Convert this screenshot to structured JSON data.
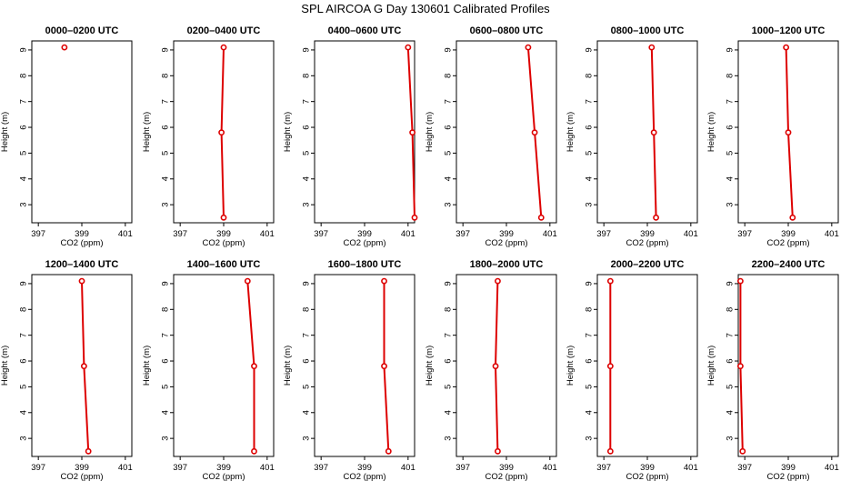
{
  "title": "SPL AIRCOA G  Day 130601  Calibrated Profiles",
  "colors": {
    "series": "#dd0000",
    "axis": "#000000"
  },
  "chart_data": [
    {
      "type": "line",
      "title": "0000–0200 UTC",
      "xlabel": "CO2 (ppm)",
      "ylabel": "Height (m)",
      "xlim": [
        396.7,
        401.3
      ],
      "ylim": [
        2.3,
        9.35
      ],
      "xticks": [
        397,
        399,
        401
      ],
      "yticks": [
        3,
        4,
        5,
        6,
        7,
        8,
        9
      ],
      "grid": false,
      "points": [
        {
          "x": 398.2,
          "y": 9.1
        }
      ]
    },
    {
      "type": "line",
      "title": "0200–0400 UTC",
      "xlabel": "CO2 (ppm)",
      "ylabel": "Height (m)",
      "xlim": [
        396.7,
        401.3
      ],
      "ylim": [
        2.3,
        9.35
      ],
      "xticks": [
        397,
        399,
        401
      ],
      "yticks": [
        3,
        4,
        5,
        6,
        7,
        8,
        9
      ],
      "grid": false,
      "points": [
        {
          "x": 399.0,
          "y": 9.1
        },
        {
          "x": 398.9,
          "y": 5.8
        },
        {
          "x": 399.0,
          "y": 2.5
        }
      ]
    },
    {
      "type": "line",
      "title": "0400–0600 UTC",
      "xlabel": "CO2 (ppm)",
      "ylabel": "Height (m)",
      "xlim": [
        396.7,
        401.3
      ],
      "ylim": [
        2.3,
        9.35
      ],
      "xticks": [
        397,
        399,
        401
      ],
      "yticks": [
        3,
        4,
        5,
        6,
        7,
        8,
        9
      ],
      "grid": false,
      "points": [
        {
          "x": 401.0,
          "y": 9.1
        },
        {
          "x": 401.2,
          "y": 5.8
        },
        {
          "x": 401.3,
          "y": 2.5
        }
      ]
    },
    {
      "type": "line",
      "title": "0600–0800 UTC",
      "xlabel": "CO2 (ppm)",
      "ylabel": "Height (m)",
      "xlim": [
        396.7,
        401.3
      ],
      "ylim": [
        2.3,
        9.35
      ],
      "xticks": [
        397,
        399,
        401
      ],
      "yticks": [
        3,
        4,
        5,
        6,
        7,
        8,
        9
      ],
      "grid": false,
      "points": [
        {
          "x": 400.0,
          "y": 9.1
        },
        {
          "x": 400.3,
          "y": 5.8
        },
        {
          "x": 400.6,
          "y": 2.5
        }
      ]
    },
    {
      "type": "line",
      "title": "0800–1000 UTC",
      "xlabel": "CO2 (ppm)",
      "ylabel": "Height (m)",
      "xlim": [
        396.7,
        401.3
      ],
      "ylim": [
        2.3,
        9.35
      ],
      "xticks": [
        397,
        399,
        401
      ],
      "yticks": [
        3,
        4,
        5,
        6,
        7,
        8,
        9
      ],
      "grid": false,
      "points": [
        {
          "x": 399.2,
          "y": 9.1
        },
        {
          "x": 399.3,
          "y": 5.8
        },
        {
          "x": 399.4,
          "y": 2.5
        }
      ]
    },
    {
      "type": "line",
      "title": "1000–1200 UTC",
      "xlabel": "CO2 (ppm)",
      "ylabel": "Height (m)",
      "xlim": [
        396.7,
        401.3
      ],
      "ylim": [
        2.3,
        9.35
      ],
      "xticks": [
        397,
        399,
        401
      ],
      "yticks": [
        3,
        4,
        5,
        6,
        7,
        8,
        9
      ],
      "grid": false,
      "points": [
        {
          "x": 398.9,
          "y": 9.1
        },
        {
          "x": 399.0,
          "y": 5.8
        },
        {
          "x": 399.2,
          "y": 2.5
        }
      ]
    },
    {
      "type": "line",
      "title": "1200–1400 UTC",
      "xlabel": "CO2 (ppm)",
      "ylabel": "Height (m)",
      "xlim": [
        396.7,
        401.3
      ],
      "ylim": [
        2.3,
        9.35
      ],
      "xticks": [
        397,
        399,
        401
      ],
      "yticks": [
        3,
        4,
        5,
        6,
        7,
        8,
        9
      ],
      "grid": false,
      "points": [
        {
          "x": 399.0,
          "y": 9.1
        },
        {
          "x": 399.1,
          "y": 5.8
        },
        {
          "x": 399.3,
          "y": 2.5
        }
      ]
    },
    {
      "type": "line",
      "title": "1400–1600 UTC",
      "xlabel": "CO2 (ppm)",
      "ylabel": "Height (m)",
      "xlim": [
        396.7,
        401.3
      ],
      "ylim": [
        2.3,
        9.35
      ],
      "xticks": [
        397,
        399,
        401
      ],
      "yticks": [
        3,
        4,
        5,
        6,
        7,
        8,
        9
      ],
      "grid": false,
      "points": [
        {
          "x": 400.1,
          "y": 9.1
        },
        {
          "x": 400.4,
          "y": 5.8
        },
        {
          "x": 400.4,
          "y": 2.5
        }
      ]
    },
    {
      "type": "line",
      "title": "1600–1800 UTC",
      "xlabel": "CO2 (ppm)",
      "ylabel": "Height (m)",
      "xlim": [
        396.7,
        401.3
      ],
      "ylim": [
        2.3,
        9.35
      ],
      "xticks": [
        397,
        399,
        401
      ],
      "yticks": [
        3,
        4,
        5,
        6,
        7,
        8,
        9
      ],
      "grid": false,
      "points": [
        {
          "x": 399.9,
          "y": 9.1
        },
        {
          "x": 399.9,
          "y": 5.8
        },
        {
          "x": 400.1,
          "y": 2.5
        }
      ]
    },
    {
      "type": "line",
      "title": "1800–2000 UTC",
      "xlabel": "CO2 (ppm)",
      "ylabel": "Height (m)",
      "xlim": [
        396.7,
        401.3
      ],
      "ylim": [
        2.3,
        9.35
      ],
      "xticks": [
        397,
        399,
        401
      ],
      "yticks": [
        3,
        4,
        5,
        6,
        7,
        8,
        9
      ],
      "grid": false,
      "points": [
        {
          "x": 398.6,
          "y": 9.1
        },
        {
          "x": 398.5,
          "y": 5.8
        },
        {
          "x": 398.6,
          "y": 2.5
        }
      ]
    },
    {
      "type": "line",
      "title": "2000–2200 UTC",
      "xlabel": "CO2 (ppm)",
      "ylabel": "Height (m)",
      "xlim": [
        396.7,
        401.3
      ],
      "ylim": [
        2.3,
        9.35
      ],
      "xticks": [
        397,
        399,
        401
      ],
      "yticks": [
        3,
        4,
        5,
        6,
        7,
        8,
        9
      ],
      "grid": false,
      "points": [
        {
          "x": 397.3,
          "y": 9.1
        },
        {
          "x": 397.3,
          "y": 5.8
        },
        {
          "x": 397.3,
          "y": 2.5
        }
      ]
    },
    {
      "type": "line",
      "title": "2200–2400 UTC",
      "xlabel": "CO2 (ppm)",
      "ylabel": "Height (m)",
      "xlim": [
        396.7,
        401.3
      ],
      "ylim": [
        2.3,
        9.35
      ],
      "xticks": [
        397,
        399,
        401
      ],
      "yticks": [
        3,
        4,
        5,
        6,
        7,
        8,
        9
      ],
      "grid": false,
      "points": [
        {
          "x": 396.8,
          "y": 9.1
        },
        {
          "x": 396.8,
          "y": 5.8
        },
        {
          "x": 396.9,
          "y": 2.5
        }
      ]
    }
  ]
}
